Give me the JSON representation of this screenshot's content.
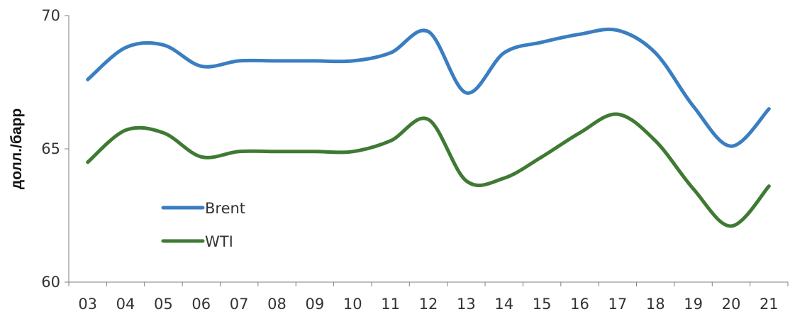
{
  "chart_data": {
    "type": "line",
    "categories": [
      "03",
      "04",
      "05",
      "06",
      "07",
      "08",
      "09",
      "10",
      "11",
      "12",
      "13",
      "14",
      "15",
      "16",
      "17",
      "18",
      "19",
      "20",
      "21"
    ],
    "series": [
      {
        "name": "Brent",
        "color": "#3a7ec2",
        "values": [
          67.6,
          68.8,
          68.9,
          68.1,
          68.3,
          68.3,
          68.3,
          68.3,
          68.6,
          69.4,
          67.1,
          68.6,
          69.0,
          69.3,
          69.45,
          68.6,
          66.6,
          65.1,
          66.5
        ]
      },
      {
        "name": "WTI",
        "color": "#3f7a33",
        "values": [
          64.5,
          65.7,
          65.6,
          64.7,
          64.9,
          64.9,
          64.9,
          64.9,
          65.3,
          66.1,
          63.8,
          63.9,
          64.7,
          65.6,
          66.3,
          65.3,
          63.5,
          62.1,
          63.6
        ]
      }
    ],
    "ylabel": "долл./барр",
    "xlabel": "",
    "title": "",
    "ylim": [
      60,
      70
    ],
    "yticks": [
      "60",
      "65",
      "70"
    ],
    "grid": false,
    "legend": "lower-left"
  }
}
